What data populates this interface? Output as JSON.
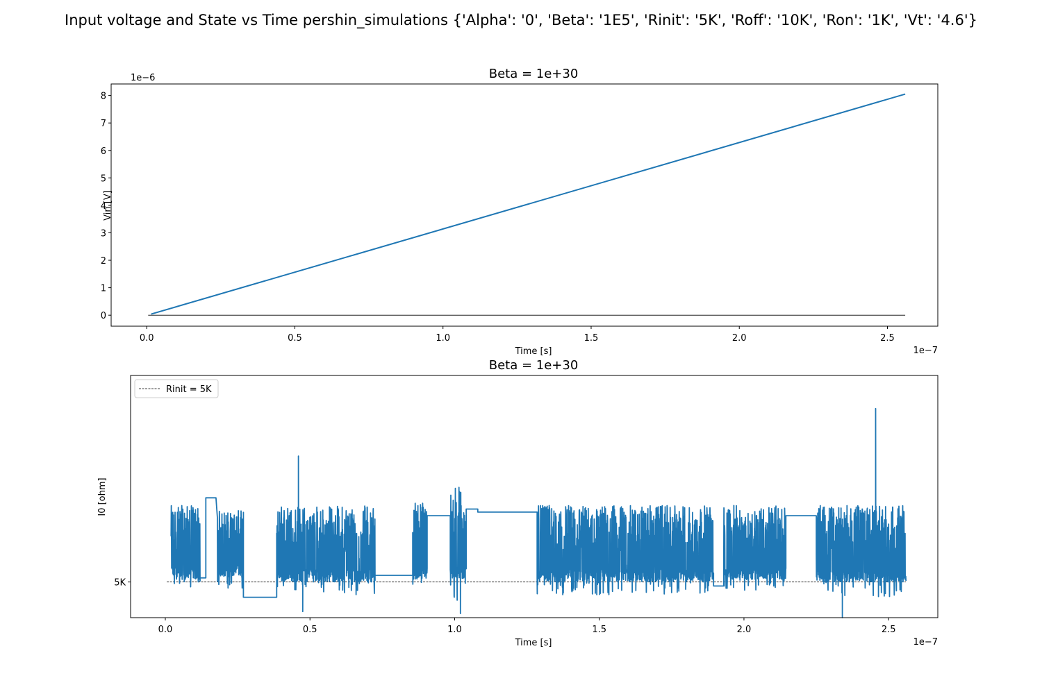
{
  "figure_title": "Input voltage and State vs Time pershin_simulations {'Alpha': '0', 'Beta': '1E5', 'Rinit': '5K', 'Roff': '10K', 'Ron': '1K', 'Vt': '4.6'}",
  "colors": {
    "series": "#1f77b4",
    "axis": "#000000",
    "reference": "#000000"
  },
  "chart_data": [
    {
      "type": "line",
      "title": "Beta = 1e+30",
      "xlabel": "Time [s]",
      "ylabel": "Vin [V]",
      "x_offset_label": "1e−7",
      "y_offset_label": "1e−6",
      "xlim": [
        -0.12,
        2.67
      ],
      "ylim": [
        -0.4,
        8.42
      ],
      "x_ticks": [
        0.0,
        0.5,
        1.0,
        1.5,
        2.0,
        2.5
      ],
      "x_tick_labels": [
        "0.0",
        "0.5",
        "1.0",
        "1.5",
        "2.0",
        "2.5"
      ],
      "y_ticks": [
        0,
        1,
        2,
        3,
        4,
        5,
        6,
        7,
        8
      ],
      "y_tick_labels": [
        "0",
        "1",
        "2",
        "3",
        "4",
        "5",
        "6",
        "7",
        "8"
      ],
      "grid": false,
      "series": [
        {
          "x": [
            0.015,
            2.56
          ],
          "y": [
            0.04,
            8.05
          ]
        }
      ],
      "reference_line": {
        "y": 0,
        "x": [
          0.005,
          2.56
        ]
      }
    },
    {
      "type": "line",
      "title": "Beta = 1e+30",
      "xlabel": "Time [s]",
      "ylabel": "I0 [ohm]",
      "x_offset_label": "1e−7",
      "xlim": [
        -0.12,
        2.67
      ],
      "ylim": [
        4.3,
        9.05
      ],
      "x_ticks": [
        0.0,
        0.5,
        1.0,
        1.5,
        2.0,
        2.5
      ],
      "x_tick_labels": [
        "0.0",
        "0.5",
        "1.0",
        "1.5",
        "2.0",
        "2.5"
      ],
      "y_ticks": [
        5.0
      ],
      "y_tick_labels": [
        "5K"
      ],
      "grid": false,
      "legend": {
        "position": "top-left",
        "entries": [
          {
            "label": "Rinit = 5K",
            "style": "dashed"
          }
        ]
      },
      "reference_line": {
        "y": 5.0,
        "x": [
          0.005,
          2.56
        ],
        "label": "Rinit = 5K"
      },
      "series": [
        {
          "segments": [
            {
              "type": "noise",
              "x": [
                0.02,
                0.12
              ],
              "base": 5.05,
              "hi": 6.5,
              "lo": 4.9
            },
            {
              "type": "hold",
              "x": [
                0.12,
                0.14
              ],
              "y": 5.08
            },
            {
              "type": "hold",
              "x": [
                0.14,
                0.175
              ],
              "y": 6.65
            },
            {
              "type": "noise",
              "x": [
                0.18,
                0.27
              ],
              "base": 5.1,
              "hi": 6.4,
              "lo": 4.85
            },
            {
              "type": "hold",
              "x": [
                0.27,
                0.385
              ],
              "y": 4.7
            },
            {
              "type": "noise",
              "x": [
                0.385,
                0.725
              ],
              "base": 5.0,
              "hi": 6.5,
              "lo": 4.75
            },
            {
              "type": "hold",
              "x": [
                0.725,
                0.855
              ],
              "y": 5.13
            },
            {
              "type": "noise",
              "x": [
                0.855,
                0.905
              ],
              "base": 5.05,
              "hi": 6.6,
              "lo": 4.8
            },
            {
              "type": "hold",
              "x": [
                0.905,
                0.985
              ],
              "y": 6.3
            },
            {
              "type": "noise",
              "x": [
                0.985,
                1.04
              ],
              "base": 5.05,
              "hi": 6.9,
              "lo": 4.6
            },
            {
              "type": "hold",
              "x": [
                1.04,
                1.08
              ],
              "y": 6.43
            },
            {
              "type": "hold",
              "x": [
                1.08,
                1.285
              ],
              "y": 6.37
            },
            {
              "type": "noise",
              "x": [
                1.285,
                1.895
              ],
              "base": 5.0,
              "hi": 6.5,
              "lo": 4.75
            },
            {
              "type": "hold",
              "x": [
                1.895,
                1.93
              ],
              "y": 4.92
            },
            {
              "type": "noise",
              "x": [
                1.93,
                2.145
              ],
              "base": 5.05,
              "hi": 6.5,
              "lo": 4.8
            },
            {
              "type": "hold",
              "x": [
                2.145,
                2.25
              ],
              "y": 6.3
            },
            {
              "type": "noise",
              "x": [
                2.25,
                2.56
              ],
              "base": 5.0,
              "hi": 6.5,
              "lo": 4.7
            }
          ],
          "spikes": [
            {
              "x": 0.46,
              "y": 7.47
            },
            {
              "x": 0.475,
              "y": 4.42
            },
            {
              "x": 1.02,
              "y": 4.38
            },
            {
              "x": 2.34,
              "y": 4.3
            },
            {
              "x": 2.455,
              "y": 8.4
            }
          ]
        }
      ]
    }
  ]
}
